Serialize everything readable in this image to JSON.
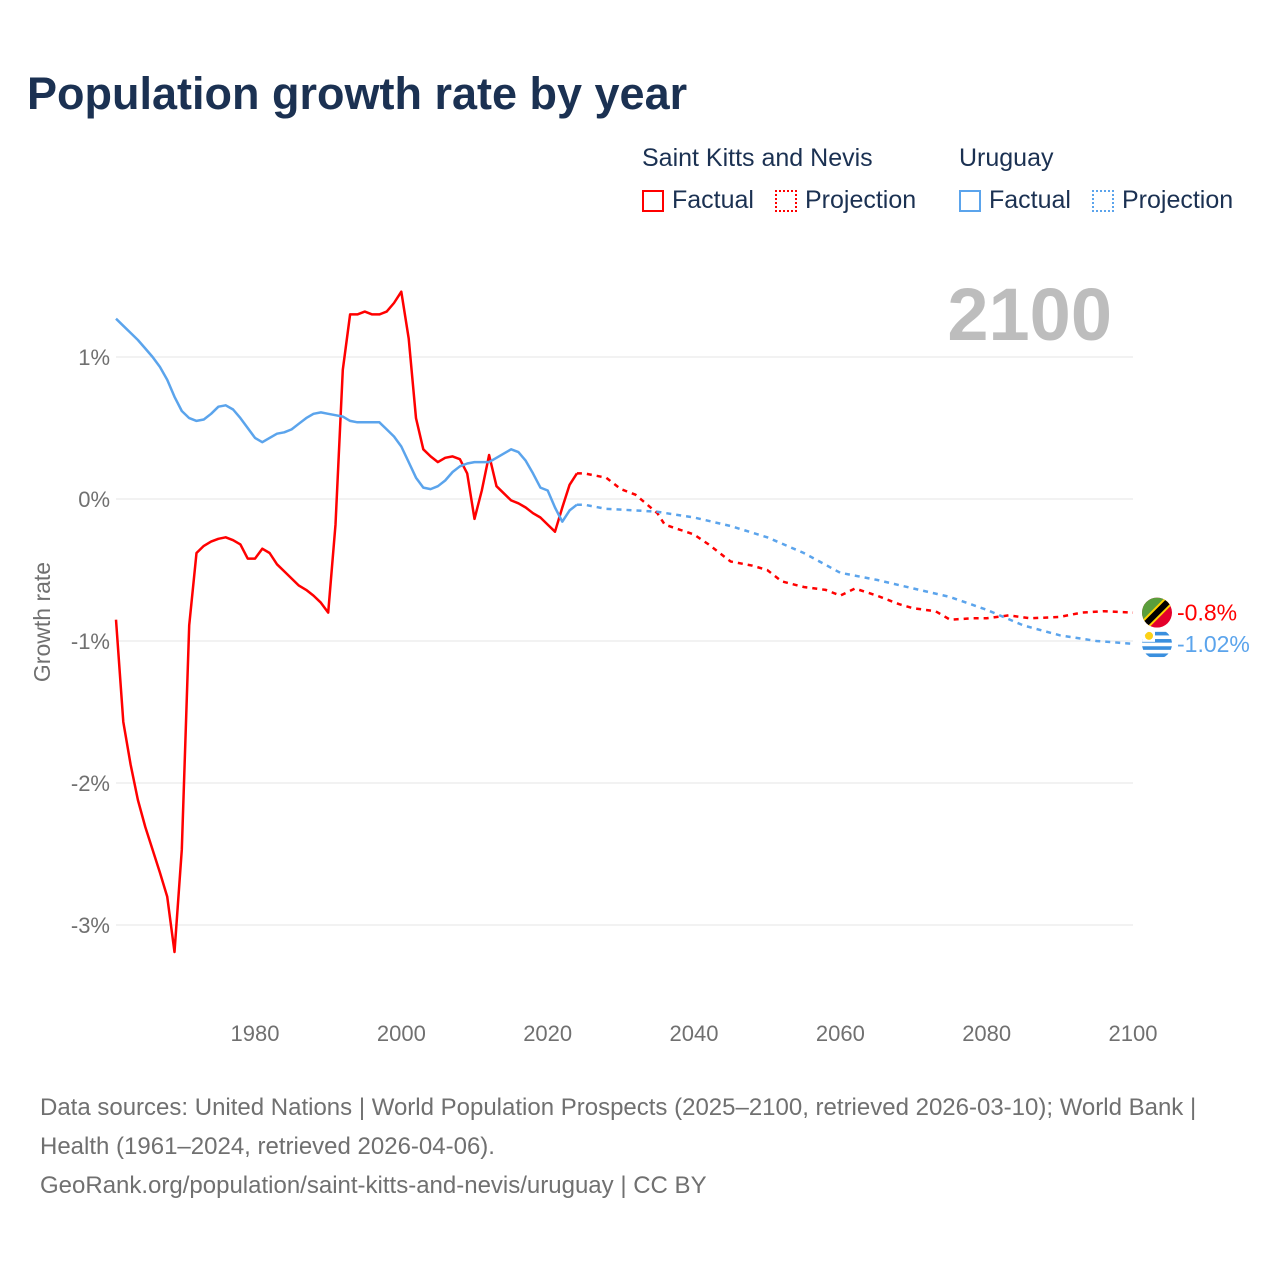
{
  "chart_data": {
    "type": "line",
    "title": "Population growth rate by year",
    "ylabel": "Growth rate",
    "xlabel": "",
    "xlim": [
      1961,
      2100
    ],
    "ylim": [
      -3.5,
      1.7
    ],
    "grid": true,
    "legend_position": "top-right",
    "highlight_year": "2100",
    "x_ticks": [
      1980,
      2000,
      2020,
      2040,
      2060,
      2080,
      2100
    ],
    "y_ticks": [
      1,
      0,
      -1,
      -2,
      -3
    ],
    "y_tick_labels": [
      "1%",
      "0%",
      "-1%",
      "-2%",
      "-3%"
    ],
    "x_tick_labels": [
      "1980",
      "2000",
      "2020",
      "2040",
      "2060",
      "2080",
      "2100"
    ],
    "legend": {
      "groups": [
        {
          "name": "Saint Kitts and Nevis",
          "factual_label": "Factual",
          "projection_label": "Projection",
          "color": "#ff0000"
        },
        {
          "name": "Uruguay",
          "factual_label": "Factual",
          "projection_label": "Projection",
          "color": "#5ba4ec"
        }
      ]
    },
    "series": [
      {
        "name": "Saint Kitts and Nevis",
        "color": "#ff0000",
        "end_label": "-0.8%",
        "flag": "saint-kitts-and-nevis",
        "factual": {
          "x": [
            1961,
            1962,
            1963,
            1964,
            1965,
            1966,
            1967,
            1968,
            1969,
            1970,
            1971,
            1972,
            1973,
            1974,
            1975,
            1976,
            1977,
            1978,
            1979,
            1980,
            1981,
            1982,
            1983,
            1984,
            1985,
            1986,
            1987,
            1988,
            1989,
            1990,
            1991,
            1992,
            1993,
            1994,
            1995,
            1996,
            1997,
            1998,
            1999,
            2000,
            2001,
            2002,
            2003,
            2004,
            2005,
            2006,
            2007,
            2008,
            2009,
            2010,
            2011,
            2012,
            2013,
            2014,
            2015,
            2016,
            2017,
            2018,
            2019,
            2020,
            2021,
            2022,
            2023,
            2024
          ],
          "y": [
            -0.85,
            -1.57,
            -1.87,
            -2.12,
            -2.31,
            -2.47,
            -2.63,
            -2.8,
            -3.19,
            -2.47,
            -0.89,
            -0.38,
            -0.33,
            -0.3,
            -0.28,
            -0.27,
            -0.29,
            -0.32,
            -0.42,
            -0.42,
            -0.35,
            -0.38,
            -0.46,
            -0.51,
            -0.56,
            -0.61,
            -0.64,
            -0.68,
            -0.73,
            -0.8,
            -0.18,
            0.91,
            1.3,
            1.3,
            1.32,
            1.3,
            1.3,
            1.32,
            1.38,
            1.46,
            1.13,
            0.57,
            0.35,
            0.3,
            0.26,
            0.29,
            0.3,
            0.28,
            0.18,
            -0.14,
            0.06,
            0.31,
            0.09,
            0.04,
            -0.01,
            -0.03,
            -0.06,
            -0.1,
            -0.13,
            -0.18,
            -0.23,
            -0.06,
            0.1,
            0.18
          ]
        },
        "projection": {
          "x": [
            2024,
            2025,
            2028,
            2030,
            2032,
            2035,
            2036,
            2040,
            2042,
            2045,
            2048,
            2050,
            2052,
            2055,
            2058,
            2060,
            2062,
            2065,
            2068,
            2070,
            2073,
            2075,
            2078,
            2080,
            2083,
            2086,
            2090,
            2093,
            2096,
            2100
          ],
          "y": [
            0.18,
            0.18,
            0.15,
            0.07,
            0.03,
            -0.1,
            -0.18,
            -0.25,
            -0.32,
            -0.44,
            -0.47,
            -0.5,
            -0.58,
            -0.62,
            -0.64,
            -0.68,
            -0.63,
            -0.68,
            -0.74,
            -0.77,
            -0.79,
            -0.85,
            -0.84,
            -0.84,
            -0.82,
            -0.84,
            -0.83,
            -0.8,
            -0.79,
            -0.8
          ]
        }
      },
      {
        "name": "Uruguay",
        "color": "#5ba4ec",
        "end_label": "-1.02%",
        "flag": "uruguay",
        "factual": {
          "x": [
            1961,
            1962,
            1963,
            1964,
            1965,
            1966,
            1967,
            1968,
            1969,
            1970,
            1971,
            1972,
            1973,
            1974,
            1975,
            1976,
            1977,
            1978,
            1979,
            1980,
            1981,
            1982,
            1983,
            1984,
            1985,
            1986,
            1987,
            1988,
            1989,
            1990,
            1991,
            1992,
            1993,
            1994,
            1995,
            1996,
            1997,
            1998,
            1999,
            2000,
            2001,
            2002,
            2003,
            2004,
            2005,
            2006,
            2007,
            2008,
            2009,
            2010,
            2011,
            2012,
            2013,
            2014,
            2015,
            2016,
            2017,
            2018,
            2019,
            2020,
            2021,
            2022,
            2023,
            2024
          ],
          "y": [
            1.27,
            1.22,
            1.17,
            1.12,
            1.06,
            1.0,
            0.93,
            0.84,
            0.72,
            0.62,
            0.57,
            0.55,
            0.56,
            0.6,
            0.65,
            0.66,
            0.63,
            0.57,
            0.5,
            0.43,
            0.4,
            0.43,
            0.46,
            0.47,
            0.49,
            0.53,
            0.57,
            0.6,
            0.61,
            0.6,
            0.59,
            0.58,
            0.55,
            0.54,
            0.54,
            0.54,
            0.54,
            0.49,
            0.44,
            0.37,
            0.26,
            0.15,
            0.08,
            0.07,
            0.09,
            0.13,
            0.19,
            0.23,
            0.25,
            0.26,
            0.26,
            0.26,
            0.29,
            0.32,
            0.35,
            0.33,
            0.27,
            0.18,
            0.08,
            0.06,
            -0.06,
            -0.16,
            -0.08,
            -0.04
          ]
        },
        "projection": {
          "x": [
            2024,
            2025,
            2028,
            2032,
            2035,
            2040,
            2045,
            2050,
            2055,
            2060,
            2065,
            2070,
            2075,
            2080,
            2085,
            2090,
            2095,
            2100
          ],
          "y": [
            -0.04,
            -0.04,
            -0.07,
            -0.08,
            -0.09,
            -0.13,
            -0.19,
            -0.27,
            -0.38,
            -0.52,
            -0.57,
            -0.63,
            -0.69,
            -0.78,
            -0.89,
            -0.96,
            -1.0,
            -1.02
          ]
        }
      }
    ]
  },
  "footer": {
    "sources": "Data sources: United Nations | World Population Prospects (2025–2100, retrieved 2026-03-10); World Bank | Health (1961–2024, retrieved 2026-04-06).",
    "link": "GeoRank.org/population/saint-kitts-and-nevis/uruguay | CC BY"
  }
}
